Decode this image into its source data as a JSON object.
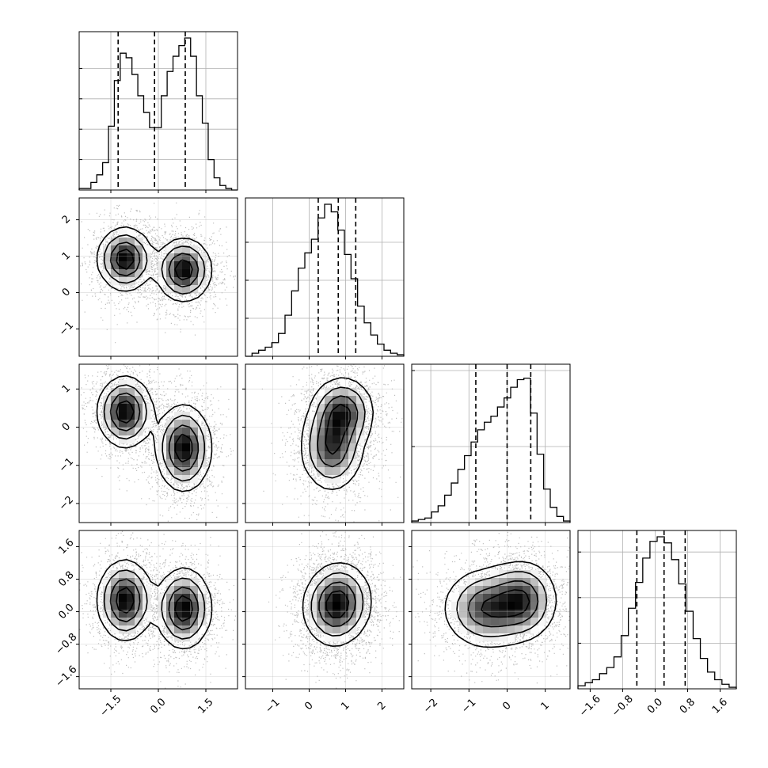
{
  "chart_data": {
    "type": "corner",
    "title": "",
    "n_params": 4,
    "colors": {
      "line": "#000000",
      "grid": "#b0b0b0",
      "points": "#6e6e6e",
      "background": "#ffffff"
    },
    "grid": true,
    "params": [
      {
        "range": [
          -2.5,
          2.5
        ],
        "ticks": [
          -1.5,
          0.0,
          1.5
        ],
        "tick_labels": [
          "−1.5",
          "0.0",
          "1.5"
        ],
        "hist": [
          0.01,
          0.01,
          0.05,
          0.1,
          0.18,
          0.42,
          0.72,
          0.9,
          0.87,
          0.76,
          0.62,
          0.51,
          0.41,
          0.41,
          0.62,
          0.78,
          0.88,
          0.95,
          1.0,
          0.88,
          0.62,
          0.44,
          0.2,
          0.08,
          0.03,
          0.01,
          0.0
        ],
        "quantiles": [
          -1.27,
          -0.12,
          0.85
        ],
        "hist_ticks": [
          0.2,
          0.4,
          0.6,
          0.8
        ]
      },
      {
        "range": [
          -1.75,
          2.6
        ],
        "ticks": [
          -1,
          0,
          1,
          2
        ],
        "tick_labels": [
          "−1",
          "0",
          "1",
          "2"
        ],
        "hist": [
          0.0,
          0.02,
          0.04,
          0.06,
          0.09,
          0.15,
          0.27,
          0.43,
          0.58,
          0.68,
          0.77,
          0.91,
          1.0,
          0.95,
          0.83,
          0.67,
          0.51,
          0.33,
          0.22,
          0.14,
          0.08,
          0.04,
          0.02,
          0.01
        ],
        "quantiles": [
          0.25,
          0.8,
          1.28
        ],
        "hist_ticks": [
          0.25,
          0.5,
          0.75
        ]
      },
      {
        "range": [
          -2.5,
          1.65
        ],
        "ticks": [
          -2,
          -1,
          0,
          1
        ],
        "tick_labels": [
          "−2",
          "−1",
          "0",
          "1"
        ],
        "hist": [
          0.01,
          0.02,
          0.03,
          0.07,
          0.11,
          0.18,
          0.26,
          0.35,
          0.44,
          0.53,
          0.61,
          0.66,
          0.7,
          0.76,
          0.82,
          0.89,
          0.94,
          0.95,
          0.72,
          0.45,
          0.22,
          0.1,
          0.04,
          0.01
        ],
        "quantiles": [
          -0.82,
          0.0,
          0.62
        ],
        "hist_ticks": [
          0.5,
          1.0
        ]
      },
      {
        "range": [
          -1.9,
          2.0
        ],
        "ticks": [
          -1.6,
          -0.8,
          0.0,
          0.8,
          1.6
        ],
        "tick_labels": [
          "−1.6",
          "−0.8",
          "0.0",
          "0.8",
          "1.6"
        ],
        "hist": [
          0.02,
          0.04,
          0.06,
          0.1,
          0.14,
          0.21,
          0.35,
          0.53,
          0.7,
          0.86,
          0.97,
          1.0,
          0.96,
          0.85,
          0.69,
          0.51,
          0.33,
          0.2,
          0.11,
          0.06,
          0.03,
          0.01
        ],
        "quantiles": [
          -0.45,
          0.22,
          0.74
        ],
        "hist_ticks": [
          0.3,
          0.6,
          0.9
        ]
      }
    ],
    "modes": [
      {
        "center": [
          -1.05,
          0.92,
          0.4,
          0.28
        ],
        "sigma": [
          0.42,
          0.42,
          0.45,
          0.48
        ],
        "weight": 0.5
      },
      {
        "center": [
          0.8,
          0.62,
          -0.55,
          0.08
        ],
        "sigma": [
          0.42,
          0.42,
          0.55,
          0.48
        ],
        "weight": 0.5
      }
    ]
  }
}
